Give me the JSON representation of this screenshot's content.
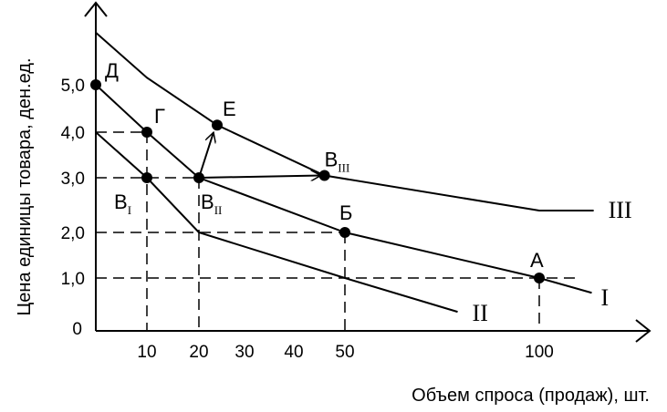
{
  "chart_data": {
    "type": "line",
    "xlabel": "Объем спроса (продаж), шт.",
    "ylabel": "Цена единицы товара, ден.ед.",
    "x_ticks": [
      {
        "value": 10,
        "label": "10"
      },
      {
        "value": 20,
        "label": "20"
      },
      {
        "value": 30,
        "label": "30"
      },
      {
        "value": 40,
        "label": "40"
      },
      {
        "value": 50,
        "label": "50"
      },
      {
        "value": 100,
        "label": "100"
      }
    ],
    "y_ticks": [
      {
        "value": 0,
        "label": "0"
      },
      {
        "value": 1,
        "label": "1,0"
      },
      {
        "value": 2,
        "label": "2,0"
      },
      {
        "value": 3,
        "label": "3,0"
      },
      {
        "value": 4,
        "label": "4,0"
      },
      {
        "value": 5,
        "label": "5,0"
      }
    ],
    "series": [
      {
        "name": "I",
        "points": [
          [
            0,
            5
          ],
          [
            10,
            4
          ],
          [
            20,
            3
          ],
          [
            50,
            2
          ],
          [
            100,
            1
          ],
          [
            113.5,
            0.72
          ]
        ]
      },
      {
        "name": "II",
        "points": [
          [
            0,
            4
          ],
          [
            10,
            3
          ],
          [
            20,
            2
          ],
          [
            50,
            1
          ],
          [
            79,
            0.36
          ]
        ]
      },
      {
        "name": "III",
        "points": [
          [
            0,
            6.1
          ],
          [
            10,
            5.15
          ],
          [
            24,
            4.15
          ],
          [
            46,
            3.05
          ],
          [
            100,
            2.4
          ],
          [
            114,
            2.4
          ]
        ]
      }
    ],
    "points": [
      {
        "label": "Д",
        "sub": "",
        "x": 0,
        "y": 5
      },
      {
        "label": "Г",
        "sub": "",
        "x": 10,
        "y": 4
      },
      {
        "label": "В",
        "sub": "I",
        "x": 10,
        "y": 3
      },
      {
        "label": "В",
        "sub": "II",
        "x": 20,
        "y": 3
      },
      {
        "label": "Е",
        "sub": "",
        "x": 24,
        "y": 4.15
      },
      {
        "label": "В",
        "sub": "III",
        "x": 46,
        "y": 3.05
      },
      {
        "label": "Б",
        "sub": "",
        "x": 50,
        "y": 2
      },
      {
        "label": "А",
        "sub": "",
        "x": 100,
        "y": 1
      }
    ],
    "arrows": [
      {
        "from": [
          20,
          3
        ],
        "to": [
          24,
          4.15
        ]
      },
      {
        "from": [
          20,
          3
        ],
        "to": [
          46,
          3.05
        ]
      }
    ],
    "guides": [
      {
        "x": 10,
        "y": 4
      },
      {
        "x": 20,
        "y": 3
      },
      {
        "x": 50,
        "y": 2
      },
      {
        "x": 100,
        "y": 1
      }
    ]
  }
}
